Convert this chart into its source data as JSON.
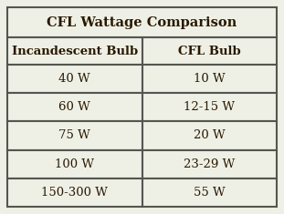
{
  "title": "CFL Wattage Comparison",
  "col_headers": [
    "Incandescent Bulb",
    "CFL Bulb"
  ],
  "rows": [
    [
      "40 W",
      "10 W"
    ],
    [
      "60 W",
      "12-15 W"
    ],
    [
      "75 W",
      "20 W"
    ],
    [
      "100 W",
      "23-29 W"
    ],
    [
      "150-300 W",
      "55 W"
    ]
  ],
  "background_color": "#eef0e6",
  "border_color": "#555550",
  "title_fontsize": 10.5,
  "header_fontsize": 9.5,
  "cell_fontsize": 9.5,
  "text_color": "#2a1800",
  "fig_bg": "#eef0e6",
  "border_lw": 1.5
}
